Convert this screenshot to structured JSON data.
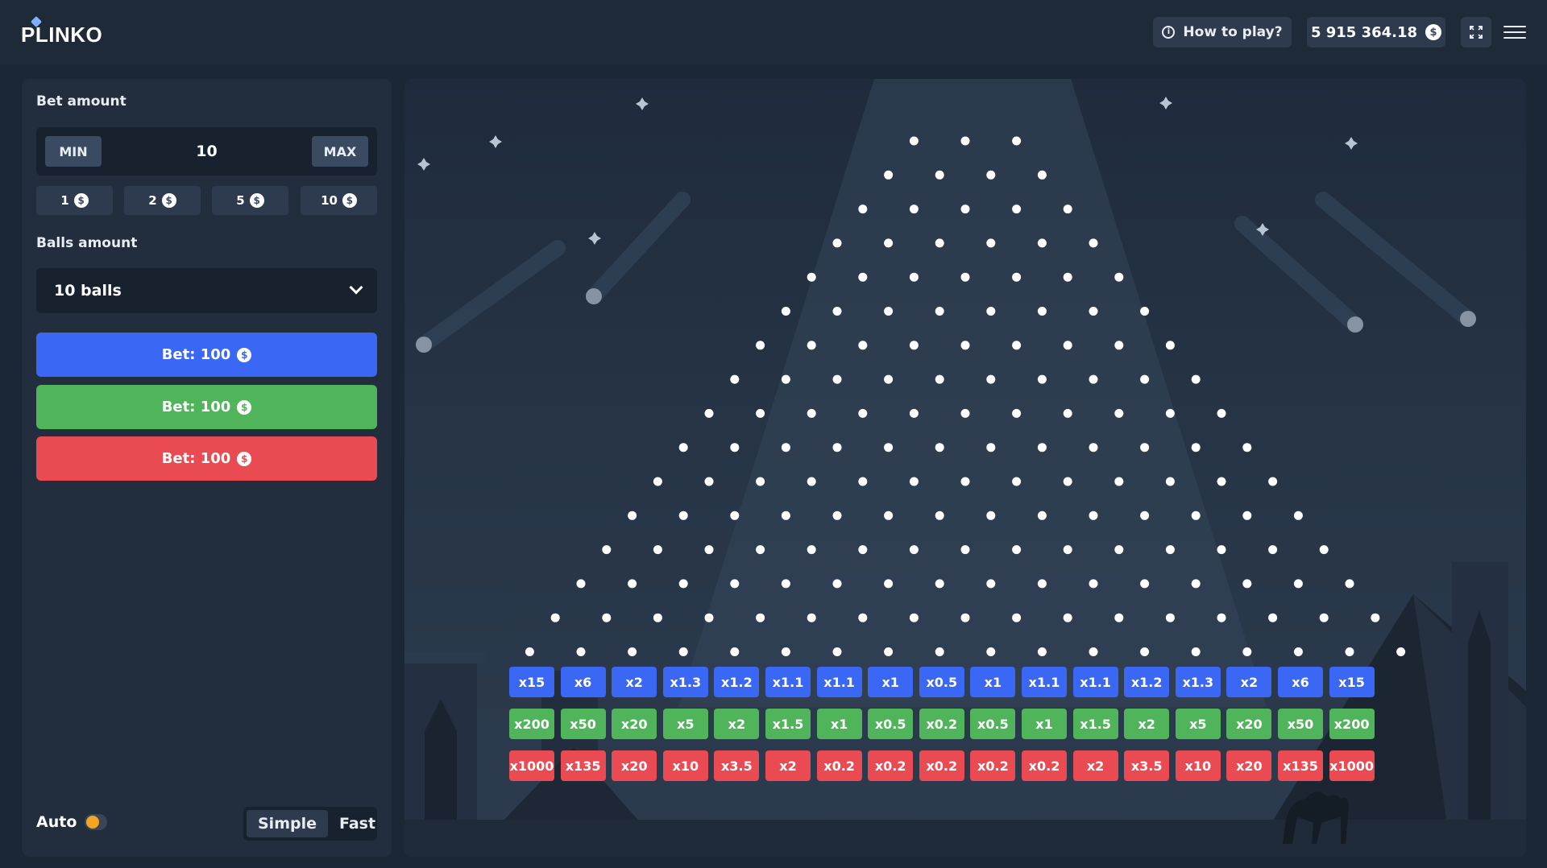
{
  "header": {
    "logo": "PLINKO",
    "how_to_play": "How to play?",
    "balance": "5 915 364.18",
    "currency_symbol": "$",
    "icons": [
      "info-icon",
      "coin-icon",
      "expand-icon",
      "hamburger-menu-icon"
    ]
  },
  "bet": {
    "label": "Bet amount",
    "min_label": "MIN",
    "max_label": "MAX",
    "value": "10",
    "chips": [
      "1",
      "2",
      "5",
      "10"
    ]
  },
  "balls": {
    "label": "Balls amount",
    "selected": "10 balls"
  },
  "bet_buttons": [
    {
      "label": "Bet: 100",
      "color": "#3b67f5"
    },
    {
      "label": "Bet: 100",
      "color": "#4fb45a"
    },
    {
      "label": "Bet: 100",
      "color": "#ea4b52"
    }
  ],
  "footer": {
    "auto_label": "Auto",
    "auto_enabled": false,
    "modes": [
      "Simple",
      "Fast"
    ],
    "active_mode": "Simple"
  },
  "board": {
    "peg_rows": 16,
    "peg_color": "#ffffff"
  },
  "multipliers": {
    "blue": [
      "x15",
      "x6",
      "x2",
      "x1.3",
      "x1.2",
      "x1.1",
      "x1.1",
      "x1",
      "x0.5",
      "x1",
      "x1.1",
      "x1.1",
      "x1.2",
      "x1.3",
      "x2",
      "x6",
      "x15"
    ],
    "green": [
      "x200",
      "x50",
      "x20",
      "x5",
      "x2",
      "x1.5",
      "x1",
      "x0.5",
      "x0.2",
      "x0.5",
      "x1",
      "x1.5",
      "x2",
      "x5",
      "x20",
      "x50",
      "x200"
    ],
    "red": [
      "x1000",
      "x135",
      "x20",
      "x10",
      "x3.5",
      "x2",
      "x0.2",
      "x0.2",
      "x0.2",
      "x0.2",
      "x0.2",
      "x2",
      "x3.5",
      "x10",
      "x20",
      "x135",
      "x1000"
    ]
  },
  "colors": {
    "background": "#1c2735",
    "panel": "#222e3e",
    "blue": "#3b67f5",
    "green": "#4fb45a",
    "red": "#ea4b52",
    "auto_toggle": "#f5a524"
  }
}
